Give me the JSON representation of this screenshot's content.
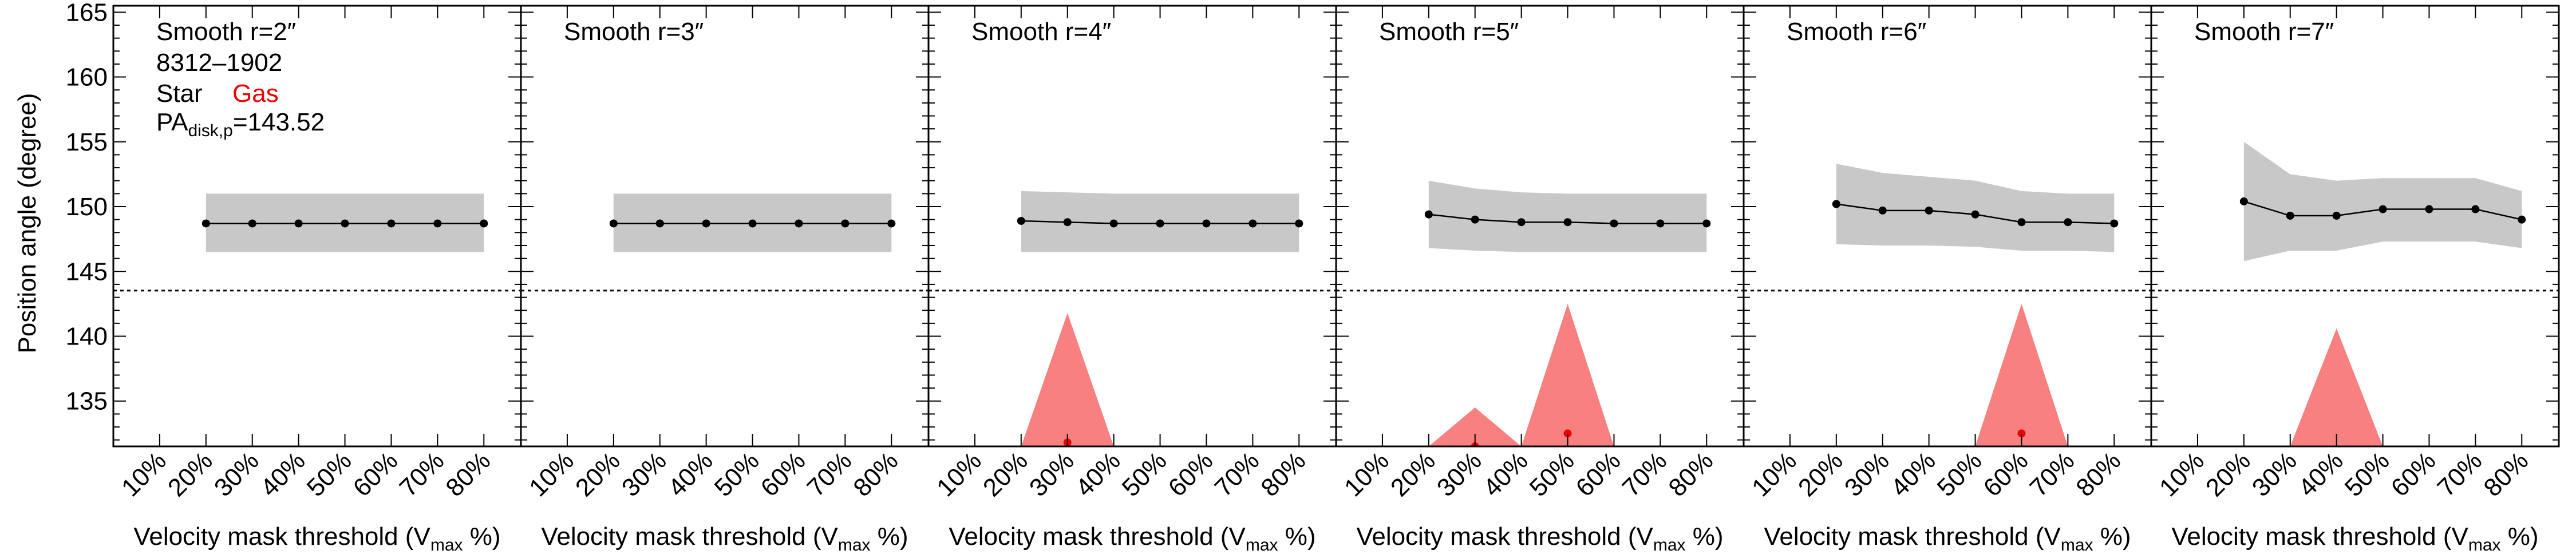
{
  "figure": {
    "ylabel": "Position angle (degree)",
    "info": {
      "galaxy": "8312–1902",
      "star_label": "Star",
      "gas_label": "Gas",
      "pa_prefix": "PA",
      "pa_subscript": "disk,p",
      "pa_value": "=143.52"
    },
    "xlabel_prefix": "Velocity mask threshold (V",
    "xlabel_sub": "max",
    "xlabel_suffix": " %)"
  },
  "colors": {
    "star_band": "#c8c8c8",
    "gas_band": "#f98080",
    "gas_point": "#ee0000",
    "star_line": "#000000"
  },
  "chart_data": [
    {
      "type": "line",
      "title": "Smooth r=2″",
      "categories": [
        "10%",
        "20%",
        "30%",
        "40%",
        "50%",
        "60%",
        "70%",
        "80%"
      ],
      "ylim": [
        131.5,
        165.5
      ],
      "yticks": [
        135,
        140,
        145,
        150,
        155,
        160,
        165
      ],
      "reference_line": 143.52,
      "star": {
        "x": [
          20,
          30,
          40,
          50,
          60,
          70,
          80
        ],
        "y": [
          148.7,
          148.7,
          148.7,
          148.7,
          148.7,
          148.7,
          148.7
        ],
        "lo": [
          146.5,
          146.5,
          146.5,
          146.5,
          146.5,
          146.5,
          146.5
        ],
        "hi": [
          151.0,
          151.0,
          151.0,
          151.0,
          151.0,
          151.0,
          151.0
        ]
      },
      "gas": {
        "x": [],
        "y": [],
        "lo": [],
        "hi": []
      }
    },
    {
      "type": "line",
      "title": "Smooth r=3″",
      "categories": [
        "10%",
        "20%",
        "30%",
        "40%",
        "50%",
        "60%",
        "70%",
        "80%"
      ],
      "ylim": [
        131.5,
        165.5
      ],
      "yticks": [
        135,
        140,
        145,
        150,
        155,
        160,
        165
      ],
      "reference_line": 143.52,
      "star": {
        "x": [
          20,
          30,
          40,
          50,
          60,
          70,
          80
        ],
        "y": [
          148.7,
          148.7,
          148.7,
          148.7,
          148.7,
          148.7,
          148.7
        ],
        "lo": [
          146.5,
          146.5,
          146.5,
          146.5,
          146.5,
          146.5,
          146.5
        ],
        "hi": [
          151.0,
          151.0,
          151.0,
          151.0,
          151.0,
          151.0,
          151.0
        ]
      },
      "gas": {
        "x": [],
        "y": [],
        "lo": [],
        "hi": []
      }
    },
    {
      "type": "line",
      "title": "Smooth r=4″",
      "categories": [
        "10%",
        "20%",
        "30%",
        "40%",
        "50%",
        "60%",
        "70%",
        "80%"
      ],
      "ylim": [
        131.5,
        165.5
      ],
      "yticks": [
        135,
        140,
        145,
        150,
        155,
        160,
        165
      ],
      "reference_line": 143.52,
      "star": {
        "x": [
          20,
          30,
          40,
          50,
          60,
          70,
          80
        ],
        "y": [
          148.9,
          148.8,
          148.7,
          148.7,
          148.7,
          148.7,
          148.7
        ],
        "lo": [
          146.5,
          146.5,
          146.5,
          146.5,
          146.5,
          146.5,
          146.5
        ],
        "hi": [
          151.2,
          151.1,
          151.0,
          151.0,
          151.0,
          151.0,
          151.0
        ]
      },
      "gas": {
        "x": [
          20,
          30,
          40
        ],
        "y": [
          131.8,
          131.8,
          131.8
        ],
        "lo": [
          131.5,
          131.5,
          131.5
        ],
        "hi": [
          131.5,
          141.8,
          131.5
        ]
      }
    },
    {
      "type": "line",
      "title": "Smooth r=5″",
      "categories": [
        "10%",
        "20%",
        "30%",
        "40%",
        "50%",
        "60%",
        "70%",
        "80%"
      ],
      "ylim": [
        131.5,
        165.5
      ],
      "yticks": [
        135,
        140,
        145,
        150,
        155,
        160,
        165
      ],
      "reference_line": 143.52,
      "star": {
        "x": [
          20,
          30,
          40,
          50,
          60,
          70,
          80
        ],
        "y": [
          149.4,
          149.0,
          148.8,
          148.8,
          148.7,
          148.7,
          148.7
        ],
        "lo": [
          146.8,
          146.6,
          146.5,
          146.5,
          146.5,
          146.5,
          146.5
        ],
        "hi": [
          152.0,
          151.4,
          151.1,
          151.0,
          151.0,
          151.0,
          151.0
        ]
      },
      "gas": {
        "x": [
          20,
          30,
          40,
          50,
          60
        ],
        "y": [
          131.5,
          131.5,
          131.5,
          132.5,
          131.5
        ],
        "lo": [
          131.5,
          131.5,
          131.5,
          131.5,
          131.5
        ],
        "hi": [
          131.5,
          134.5,
          131.5,
          142.5,
          131.5
        ]
      }
    },
    {
      "type": "line",
      "title": "Smooth r=6″",
      "categories": [
        "10%",
        "20%",
        "30%",
        "40%",
        "50%",
        "60%",
        "70%",
        "80%"
      ],
      "ylim": [
        131.5,
        165.5
      ],
      "yticks": [
        135,
        140,
        145,
        150,
        155,
        160,
        165
      ],
      "reference_line": 143.52,
      "star": {
        "x": [
          20,
          30,
          40,
          50,
          60,
          70,
          80
        ],
        "y": [
          150.2,
          149.7,
          149.7,
          149.4,
          148.8,
          148.8,
          148.7
        ],
        "lo": [
          147.1,
          147.0,
          147.0,
          146.9,
          146.6,
          146.6,
          146.5
        ],
        "hi": [
          153.3,
          152.6,
          152.3,
          152.0,
          151.2,
          151.0,
          151.0
        ]
      },
      "gas": {
        "x": [
          50,
          60,
          70
        ],
        "y": [
          131.5,
          132.5,
          131.5
        ],
        "lo": [
          131.5,
          131.5,
          131.5
        ],
        "hi": [
          131.5,
          142.5,
          131.5
        ]
      }
    },
    {
      "type": "line",
      "title": "Smooth r=7″",
      "categories": [
        "10%",
        "20%",
        "30%",
        "40%",
        "50%",
        "60%",
        "70%",
        "80%"
      ],
      "ylim": [
        131.5,
        165.5
      ],
      "yticks": [
        135,
        140,
        145,
        150,
        155,
        160,
        165
      ],
      "reference_line": 143.52,
      "star": {
        "x": [
          20,
          30,
          40,
          50,
          60,
          70,
          80
        ],
        "y": [
          150.4,
          149.3,
          149.3,
          149.8,
          149.8,
          149.8,
          149.0
        ],
        "lo": [
          145.8,
          146.6,
          146.6,
          147.3,
          147.3,
          147.3,
          146.8
        ],
        "hi": [
          155.0,
          152.5,
          152.0,
          152.2,
          152.2,
          152.2,
          151.2
        ]
      },
      "gas": {
        "x": [
          30,
          40,
          50
        ],
        "y": [
          null,
          null,
          null
        ],
        "lo": [
          131.5,
          131.5,
          131.5
        ],
        "hi": [
          131.5,
          140.6,
          131.5
        ]
      }
    }
  ]
}
